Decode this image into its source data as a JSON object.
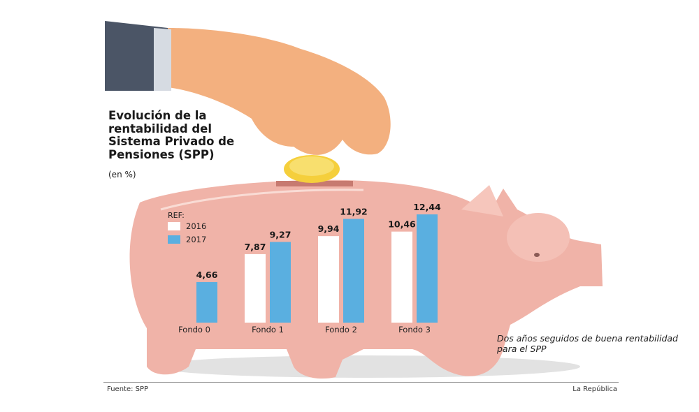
{
  "title": "Evolución de la rentabilidad del Sistema Privado de Pensiones (SPP)",
  "subtitle": "(en %)",
  "note": "Dos años seguidos de buena rentabilidad para el SPP",
  "source": "Fuente: SPP",
  "brand": "La República",
  "chart_data": {
    "type": "bar",
    "title": "Evolución de la rentabilidad del Sistema Privado de Pensiones (SPP)",
    "ylabel": "(en %)",
    "legend_title": "REF:",
    "categories": [
      "Fondo 0",
      "Fondo 1",
      "Fondo 2",
      "Fondo 3"
    ],
    "series": [
      {
        "name": "2016",
        "color": "#ffffff",
        "values": [
          null,
          7.87,
          9.94,
          10.46
        ],
        "labels": [
          "",
          "7,87",
          "9,94",
          "10,46"
        ]
      },
      {
        "name": "2017",
        "color": "#5aafe0",
        "values": [
          4.66,
          9.27,
          11.92,
          12.44
        ],
        "labels": [
          "4,66",
          "9,27",
          "11,92",
          "12,44"
        ]
      }
    ],
    "ylim": [
      0,
      12.44
    ],
    "grid": false,
    "legend_placement": "top-left"
  },
  "colors": {
    "pig": "#f0b3a8",
    "pig_shadow": "#e0e0e0",
    "hand": "#f3b07f",
    "sleeve": "#4b5566",
    "coin": "#f5cf3c"
  }
}
